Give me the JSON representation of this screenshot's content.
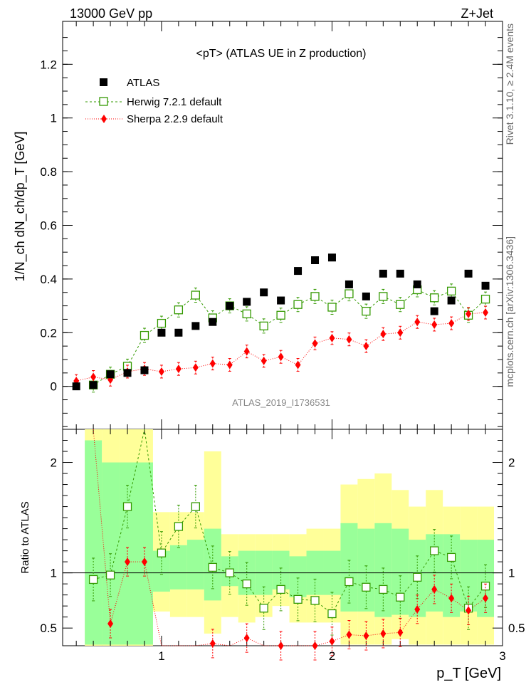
{
  "header": {
    "left": "13000 GeV pp",
    "right": "Z+Jet"
  },
  "side_labels": {
    "top": "Rivet 3.1.10, ≥ 2.4M events",
    "bottom": "mcplots.cern.ch [arXiv:1306.3436]"
  },
  "chart_data": [
    {
      "type": "scatter",
      "title": "<pT> (ATLAS UE in Z production)",
      "watermark": "ATLAS_2019_I1736531",
      "ylabel": "1/N_ch dN_ch/dp_T [GeV]",
      "ylim": [
        -0.16,
        1.36
      ],
      "yticks": [
        0,
        0.2,
        0.4,
        0.6,
        0.8,
        1,
        1.2
      ],
      "ytick_labels": [
        "0",
        "0.2",
        "0.4",
        "0.6",
        "0.8",
        "1",
        "1.2"
      ],
      "xlim": [
        0.42,
        3.0
      ],
      "x": [
        0.5,
        0.6,
        0.7,
        0.8,
        0.9,
        1.0,
        1.1,
        1.2,
        1.3,
        1.4,
        1.5,
        1.6,
        1.7,
        1.8,
        1.9,
        2.0,
        2.1,
        2.2,
        2.3,
        2.4,
        2.5,
        2.6,
        2.7,
        2.8,
        2.9
      ],
      "legend_position": "top-left",
      "series": [
        {
          "name": "ATLAS",
          "marker": "filled-square",
          "color": "#000000",
          "values": [
            0.0,
            0.005,
            0.045,
            0.05,
            0.06,
            0.2,
            0.2,
            0.225,
            0.24,
            0.3,
            0.315,
            0.35,
            0.32,
            0.43,
            0.47,
            0.48,
            0.38,
            0.335,
            0.42,
            0.42,
            0.38,
            0.28,
            0.32,
            0.42,
            0.375
          ]
        },
        {
          "name": "Herwig 7.2.1 default",
          "marker": "open-square",
          "color": "#339900",
          "values": [
            null,
            0.005,
            0.045,
            0.075,
            0.19,
            0.235,
            0.285,
            0.34,
            0.255,
            0.3,
            0.27,
            0.225,
            0.265,
            0.305,
            0.335,
            0.295,
            0.345,
            0.28,
            0.335,
            0.305,
            0.36,
            0.33,
            0.355,
            0.265,
            0.325
          ]
        },
        {
          "name": "Sherpa 2.2.9 default",
          "marker": "diamond",
          "color": "#ff0000",
          "values": [
            0.02,
            0.035,
            0.025,
            0.055,
            0.065,
            0.055,
            0.065,
            0.07,
            0.085,
            0.08,
            0.13,
            0.095,
            0.11,
            0.08,
            0.16,
            0.18,
            0.175,
            0.15,
            0.195,
            0.2,
            0.24,
            0.23,
            0.235,
            0.27,
            0.275
          ]
        }
      ]
    },
    {
      "type": "line",
      "ylabel": "Ratio to ATLAS",
      "ylim": [
        0.34,
        2.3
      ],
      "yticks": [
        0.5,
        1,
        2
      ],
      "ytick_labels": [
        "0.5",
        "1",
        "2"
      ],
      "xlim": [
        0.42,
        3.0
      ],
      "xticks": [
        1,
        2,
        3
      ],
      "xtick_labels": [
        "1",
        "2",
        "3"
      ],
      "xlabel": "p_T [GeV]",
      "x": [
        0.5,
        0.6,
        0.7,
        0.8,
        0.9,
        1.0,
        1.1,
        1.2,
        1.3,
        1.4,
        1.5,
        1.6,
        1.7,
        1.8,
        1.9,
        2.0,
        2.1,
        2.2,
        2.3,
        2.4,
        2.5,
        2.6,
        2.7,
        2.8,
        2.9
      ],
      "uncertainty_bands": {
        "yellow_color": "#ffff99",
        "green_color": "#99ff99",
        "yellow_lo": [
          null,
          0.1,
          0.1,
          0.1,
          0.1,
          0.65,
          0.6,
          0.6,
          0.45,
          0.6,
          0.55,
          0.6,
          0.7,
          0.55,
          0.55,
          0.55,
          0.35,
          0.35,
          0.35,
          0.4,
          0.35,
          0.35,
          0.35,
          0.35,
          0.35
        ],
        "yellow_hi": [
          null,
          2.3,
          2.3,
          2.3,
          2.3,
          1.55,
          1.55,
          1.55,
          2.1,
          1.35,
          1.35,
          1.35,
          1.35,
          1.35,
          1.4,
          1.4,
          1.8,
          1.85,
          1.9,
          1.75,
          1.6,
          1.75,
          1.6,
          1.6,
          1.6
        ],
        "green_lo": [
          null,
          0.35,
          0.35,
          0.35,
          0.35,
          0.83,
          0.85,
          0.85,
          0.75,
          0.88,
          0.8,
          0.8,
          0.85,
          0.78,
          0.8,
          0.8,
          0.65,
          0.65,
          0.6,
          0.62,
          0.6,
          0.65,
          0.6,
          0.65,
          0.6
        ],
        "green_hi": [
          null,
          2.2,
          2.0,
          2.0,
          2.0,
          1.2,
          1.25,
          1.3,
          1.4,
          1.15,
          1.2,
          1.2,
          1.2,
          1.15,
          1.2,
          1.2,
          1.45,
          1.4,
          1.45,
          1.4,
          1.3,
          1.35,
          1.35,
          1.3,
          1.3
        ]
      },
      "series": [
        {
          "name": "Herwig 7.2.1 default",
          "marker": "open-square",
          "color": "#339900",
          "values": [
            null,
            0.94,
            0.98,
            1.6,
            3.0,
            1.18,
            1.42,
            1.6,
            1.05,
            1.0,
            0.9,
            0.68,
            0.85,
            0.76,
            0.75,
            0.63,
            0.92,
            0.87,
            0.85,
            0.78,
            0.96,
            1.2,
            1.14,
            0.68,
            0.88
          ]
        },
        {
          "name": "Sherpa 2.2.9 default",
          "marker": "diamond",
          "color": "#ff0000",
          "values": [
            null,
            2.4,
            0.54,
            1.1,
            1.1,
            0.27,
            0.33,
            0.31,
            0.36,
            0.26,
            0.41,
            0.27,
            0.34,
            0.19,
            0.34,
            0.38,
            0.44,
            0.43,
            0.45,
            0.46,
            0.67,
            0.85,
            0.77,
            0.66,
            0.77
          ]
        }
      ]
    }
  ]
}
